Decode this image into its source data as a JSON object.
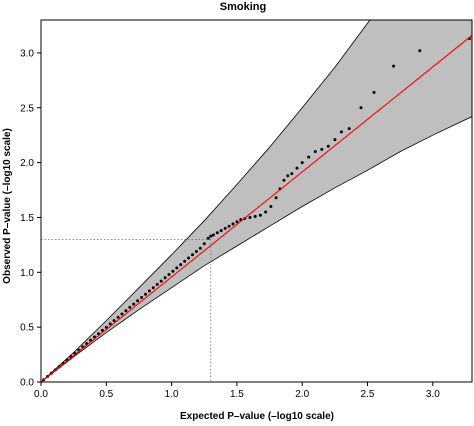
{
  "chart_data": {
    "type": "scatter",
    "title": "Smoking",
    "xlabel": "Expected P–value (–log10 scale)",
    "ylabel": "Observed P–value (–log10 scale)",
    "xlim": [
      0,
      3.3
    ],
    "ylim": [
      0,
      3.3
    ],
    "xticks": [
      "0.0",
      "0.5",
      "1.0",
      "1.5",
      "2.0",
      "2.5",
      "3.0"
    ],
    "yticks": [
      "0.0",
      "0.5",
      "1.0",
      "1.5",
      "2.0",
      "2.5",
      "3.0"
    ],
    "grid": false,
    "legend": "none",
    "colors": {
      "points": "#000000",
      "fit_line": "#ff0000",
      "band": "#bfbfbf",
      "reference": "#666666"
    },
    "reference_lines": {
      "x": 1.3,
      "y": 1.3
    },
    "fit_line": [
      [
        0,
        0
      ],
      [
        3.3,
        3.16
      ]
    ],
    "band": {
      "x": [
        0.01,
        0.25,
        0.5,
        0.75,
        1.0,
        1.25,
        1.5,
        1.75,
        2.0,
        2.25,
        2.5,
        2.75,
        3.0,
        3.3
      ],
      "upper": [
        0.01,
        0.27,
        0.56,
        0.86,
        1.16,
        1.47,
        1.8,
        2.14,
        2.5,
        2.87,
        3.27,
        3.68,
        4.1,
        4.6
      ],
      "lower": [
        0.01,
        0.23,
        0.45,
        0.66,
        0.86,
        1.06,
        1.24,
        1.42,
        1.6,
        1.77,
        1.93,
        2.1,
        2.25,
        2.42
      ]
    },
    "series": [
      {
        "x": [
          0.02,
          0.05,
          0.08,
          0.11,
          0.14,
          0.17,
          0.2,
          0.23,
          0.26,
          0.29,
          0.32,
          0.35,
          0.38,
          0.41,
          0.44,
          0.47,
          0.5,
          0.53,
          0.56,
          0.59,
          0.62,
          0.65,
          0.68,
          0.71,
          0.74,
          0.77,
          0.8,
          0.83,
          0.86,
          0.89,
          0.92,
          0.95,
          0.98,
          1.01,
          1.04,
          1.07,
          1.1,
          1.13,
          1.16,
          1.19,
          1.22,
          1.25,
          1.28,
          1.3,
          1.32,
          1.35,
          1.38,
          1.41,
          1.44,
          1.47,
          1.5,
          1.53,
          1.56,
          1.6,
          1.64,
          1.68,
          1.72,
          1.76,
          1.8,
          1.83,
          1.86,
          1.89,
          1.92,
          1.96,
          2.0,
          2.05,
          2.1,
          2.15,
          2.2,
          2.25,
          2.3,
          2.36,
          2.45,
          2.55,
          2.7,
          2.9,
          3.28
        ],
        "y": [
          0.02,
          0.05,
          0.08,
          0.11,
          0.14,
          0.17,
          0.2,
          0.23,
          0.26,
          0.29,
          0.32,
          0.35,
          0.38,
          0.41,
          0.44,
          0.47,
          0.5,
          0.53,
          0.56,
          0.59,
          0.62,
          0.65,
          0.68,
          0.71,
          0.74,
          0.77,
          0.8,
          0.83,
          0.86,
          0.89,
          0.92,
          0.95,
          0.98,
          1.01,
          1.04,
          1.07,
          1.1,
          1.13,
          1.16,
          1.19,
          1.22,
          1.26,
          1.31,
          1.33,
          1.34,
          1.36,
          1.38,
          1.4,
          1.42,
          1.44,
          1.46,
          1.48,
          1.49,
          1.5,
          1.51,
          1.52,
          1.55,
          1.6,
          1.68,
          1.76,
          1.84,
          1.88,
          1.9,
          1.95,
          2.0,
          2.05,
          2.1,
          2.12,
          2.15,
          2.21,
          2.28,
          2.31,
          2.5,
          2.64,
          2.88,
          3.02,
          3.13
        ]
      }
    ]
  }
}
